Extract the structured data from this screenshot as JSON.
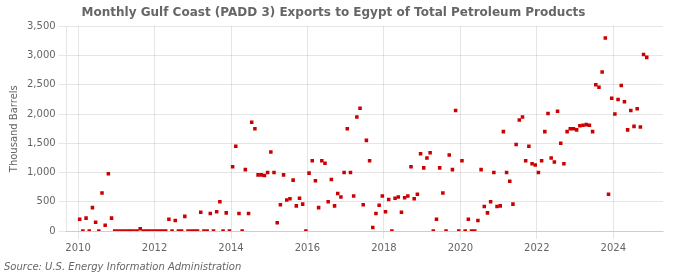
{
  "chart_data": {
    "type": "scatter",
    "title": "Monthly Gulf Coast (PADD 3) Exports to Egypt of Total Petroleum Products",
    "ylabel": "Thousand Barrels",
    "annotations": [
      "Source: U.S. Energy Information Administration"
    ],
    "color": "#cc0000",
    "marker": "square",
    "grid": true,
    "xlim": [
      2009.7,
      2025.3
    ],
    "xticks": [
      2010,
      2012,
      2014,
      2016,
      2018,
      2020,
      2022,
      2024
    ],
    "ylim": [
      0,
      3500
    ],
    "yticks": [
      0,
      500,
      {
        "value": 1000,
        "label": "1,000"
      },
      {
        "value": 1500,
        "label": "1,500"
      },
      {
        "value": 2000,
        "label": "2,000"
      },
      {
        "value": 2500,
        "label": "2,500"
      },
      {
        "value": 3000,
        "label": "3,000"
      },
      {
        "value": 3500,
        "label": "3,500"
      }
    ],
    "x": [
      2010.0416666666667,
      2010.125,
      2010.2083333333333,
      2010.2916666666667,
      2010.375,
      2010.4583333333333,
      2010.5416666666667,
      2010.625,
      2010.7083333333333,
      2010.7916666666667,
      2010.875,
      2010.9583333333333,
      2011.0416666666667,
      2011.125,
      2011.2083333333333,
      2011.2916666666667,
      2011.375,
      2011.4583333333333,
      2011.5416666666667,
      2011.625,
      2011.7083333333333,
      2011.7916666666667,
      2011.875,
      2011.9583333333333,
      2012.0416666666667,
      2012.125,
      2012.2083333333333,
      2012.2916666666667,
      2012.375,
      2012.4583333333333,
      2012.5416666666667,
      2012.625,
      2012.7083333333333,
      2012.7916666666667,
      2012.875,
      2012.9583333333333,
      2013.0416666666667,
      2013.125,
      2013.2083333333333,
      2013.2916666666667,
      2013.375,
      2013.4583333333333,
      2013.5416666666667,
      2013.625,
      2013.7083333333333,
      2013.7916666666667,
      2013.875,
      2013.9583333333333,
      2014.0416666666667,
      2014.125,
      2014.2083333333333,
      2014.2916666666667,
      2014.375,
      2014.4583333333333,
      2014.5416666666667,
      2014.625,
      2014.7083333333333,
      2014.7916666666667,
      2014.875,
      2014.9583333333333,
      2015.0416666666667,
      2015.125,
      2015.2083333333333,
      2015.2916666666667,
      2015.375,
      2015.4583333333333,
      2015.5416666666667,
      2015.625,
      2015.7083333333333,
      2015.7916666666667,
      2015.875,
      2015.9583333333333,
      2016.0416666666667,
      2016.125,
      2016.2083333333333,
      2016.2916666666667,
      2016.375,
      2016.4583333333333,
      2016.5416666666667,
      2016.625,
      2016.7083333333333,
      2016.7916666666667,
      2016.875,
      2016.9583333333333,
      2017.0416666666667,
      2017.125,
      2017.2083333333333,
      2017.2916666666667,
      2017.375,
      2017.4583333333333,
      2017.5416666666667,
      2017.625,
      2017.7083333333333,
      2017.7916666666667,
      2017.875,
      2017.9583333333333,
      2018.0416666666667,
      2018.125,
      2018.2083333333333,
      2018.2916666666667,
      2018.375,
      2018.4583333333333,
      2018.5416666666667,
      2018.625,
      2018.7083333333333,
      2018.7916666666667,
      2018.875,
      2018.9583333333333,
      2019.0416666666667,
      2019.125,
      2019.2083333333333,
      2019.2916666666667,
      2019.375,
      2019.4583333333333,
      2019.5416666666667,
      2019.625,
      2019.7083333333333,
      2019.7916666666667,
      2019.875,
      2019.9583333333333,
      2020.0416666666667,
      2020.125,
      2020.2083333333333,
      2020.2916666666667,
      2020.375,
      2020.4583333333333,
      2020.5416666666667,
      2020.625,
      2020.7083333333333,
      2020.7916666666667,
      2020.875,
      2020.9583333333333,
      2021.0416666666667,
      2021.125,
      2021.2083333333333,
      2021.2916666666667,
      2021.375,
      2021.4583333333333,
      2021.5416666666667,
      2021.625,
      2021.7083333333333,
      2021.7916666666667,
      2021.875,
      2021.9583333333333,
      2022.0416666666667,
      2022.125,
      2022.2083333333333,
      2022.2916666666667,
      2022.375,
      2022.4583333333333,
      2022.5416666666667,
      2022.625,
      2022.7083333333333,
      2022.7916666666667,
      2022.875,
      2022.9583333333333,
      2023.0416666666667,
      2023.125,
      2023.2083333333333,
      2023.2916666666667,
      2023.375,
      2023.4583333333333,
      2023.5416666666667,
      2023.625,
      2023.7083333333333,
      2023.7916666666667,
      2023.875,
      2023.9583333333333,
      2024.0416666666667,
      2024.125,
      2024.2083333333333,
      2024.2916666666667,
      2024.375,
      2024.4583333333333,
      2024.5416666666667,
      2024.625,
      2024.7083333333333,
      2024.7916666666667,
      2024.875
    ],
    "values": [
      200,
      0,
      220,
      0,
      400,
      150,
      0,
      650,
      100,
      980,
      220,
      0,
      0,
      0,
      0,
      0,
      0,
      0,
      0,
      40,
      0,
      0,
      0,
      0,
      0,
      0,
      0,
      0,
      200,
      0,
      180,
      0,
      0,
      250,
      0,
      0,
      0,
      0,
      320,
      0,
      0,
      300,
      0,
      330,
      500,
      0,
      310,
      0,
      1100,
      1450,
      300,
      0,
      1050,
      300,
      1860,
      1750,
      960,
      960,
      950,
      1000,
      1350,
      1000,
      140,
      450,
      960,
      530,
      550,
      870,
      430,
      560,
      460,
      0,
      990,
      1200,
      860,
      400,
      1200,
      1160,
      500,
      880,
      430,
      640,
      580,
      1000,
      1750,
      1000,
      600,
      1950,
      2100,
      450,
      1550,
      1200,
      60,
      300,
      440,
      600,
      330,
      540,
      0,
      560,
      580,
      320,
      570,
      600,
      1100,
      550,
      630,
      1320,
      1080,
      1250,
      1340,
      0,
      200,
      1080,
      650,
      0,
      1300,
      1050,
      2060,
      0,
      1200,
      0,
      200,
      0,
      0,
      180,
      1050,
      420,
      310,
      500,
      1000,
      420,
      430,
      1700,
      1000,
      850,
      460,
      1480,
      1900,
      1950,
      1200,
      1450,
      1150,
      1130,
      1000,
      1200,
      1700,
      2010,
      1250,
      1180,
      2050,
      1500,
      1150,
      1700,
      1750,
      1750,
      1730,
      1800,
      1810,
      1820,
      1810,
      1700,
      2500,
      2460,
      2720,
      3300,
      630,
      2270,
      2000,
      2250,
      2490,
      2210,
      1730,
      2060,
      1790,
      2090,
      1780,
      3020,
      2970
    ]
  }
}
